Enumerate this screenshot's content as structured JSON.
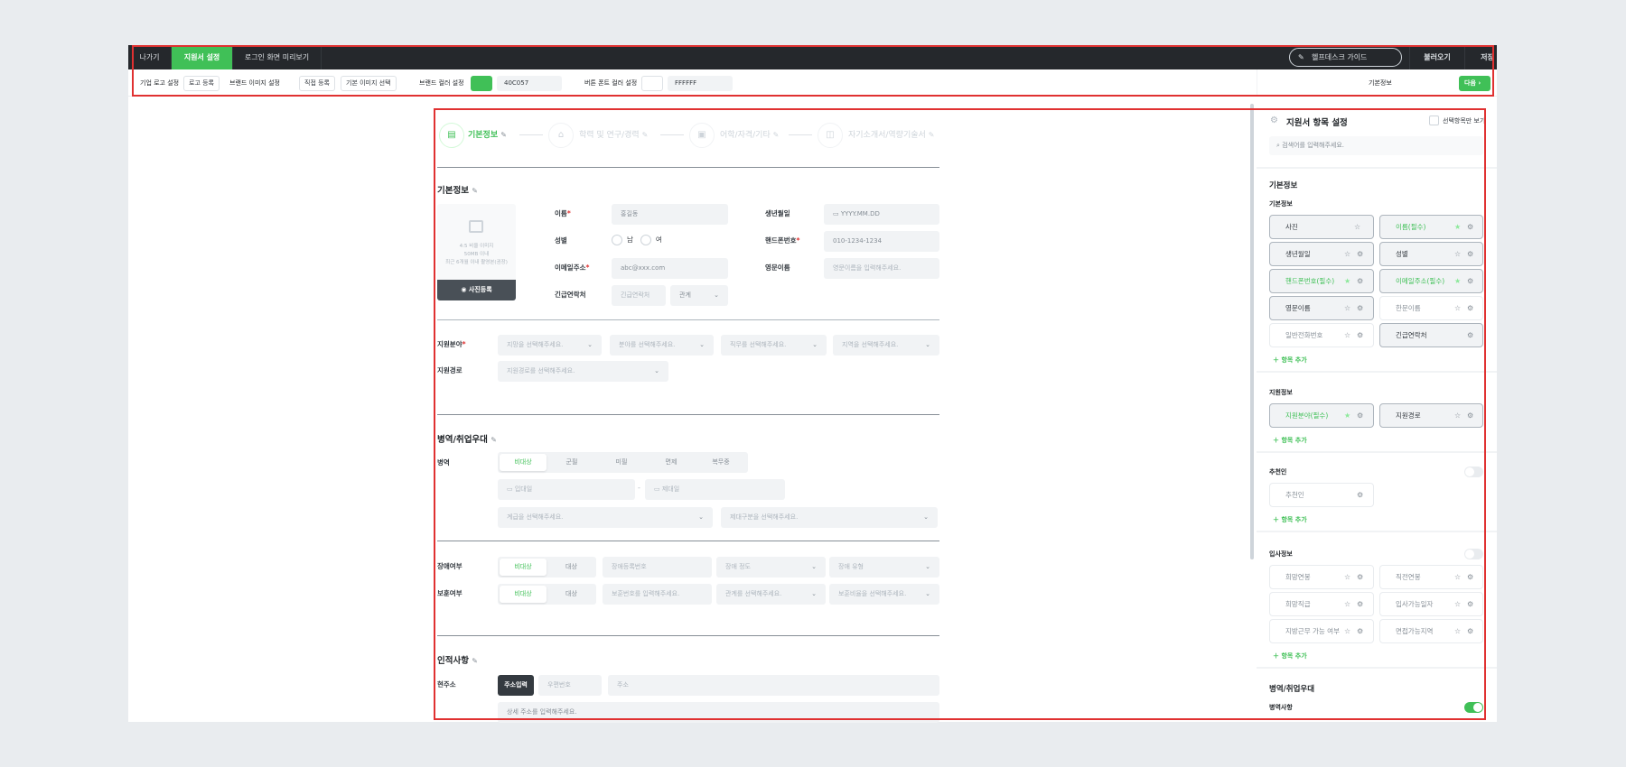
{
  "colors": {
    "brand": "#40C057",
    "topbar": "#25282c"
  },
  "topbar": {
    "tabs": [
      "나가기",
      "지원서 설정",
      "로그인 화면 미리보기"
    ],
    "active_tab": 1,
    "helpdesk": "헬프데스크 가이드",
    "load": "불러오기",
    "save": "저장"
  },
  "toolbar": {
    "logo_label": "기업 로고 설정",
    "logo_btn": "로고 등록",
    "brand_img_label": "브랜드 이미지 설정",
    "brand_img_btn1": "직접 등록",
    "brand_img_btn2": "기본 이미지 선택",
    "brand_color_label": "브랜드 컬러 설정",
    "brand_color": "40C057",
    "font_color_label": "버튼 폰트 컬러 설정",
    "font_color": "FFFFFF",
    "current_step": "기본정보",
    "next": "다음"
  },
  "steps": [
    "기본정보",
    "학력 및 연구/경력",
    "어학/자격/기타",
    "자기소개서/역량기술서"
  ],
  "basic": {
    "title": "기본정보",
    "photo_hint": [
      "4:5 비율 이미지",
      "50MB 이내",
      "최근 6개월 이내 촬영본(권장)"
    ],
    "photo_btn": "사진등록",
    "name_label": "이름",
    "name_ph": "홍길동",
    "birth_label": "생년월일",
    "birth_ph": "YYYY.MM.DD",
    "gender_label": "성별",
    "male": "남",
    "female": "여",
    "phone_label": "핸드폰번호",
    "phone_ph": "010-1234-1234",
    "email_label": "이메일주소",
    "email_ph": "abc@xxx.com",
    "eng_label": "영문이름",
    "eng_ph": "영문이름을 입력해주세요.",
    "emergency_label": "긴급연락처",
    "emergency_ph": "긴급연락처",
    "relation_ph": "관계",
    "apply_label": "지원분야",
    "apply_selects": [
      "지망을 선택해주세요.",
      "분야를 선택해주세요.",
      "직무를 선택해주세요.",
      "지역을 선택해주세요."
    ],
    "route_label": "지원경로",
    "route_ph": "지원경로를 선택해주세요."
  },
  "military": {
    "title": "병역/취업우대",
    "label": "병역",
    "options": [
      "비대상",
      "군필",
      "미필",
      "면제",
      "복무중"
    ],
    "selected": "비대상",
    "enlist_ph": "입대일",
    "discharge_ph": "제대일",
    "rank_ph": "계급을 선택해주세요.",
    "discharge_type_ph": "제대구분을 선택해주세요.",
    "disability_label": "장애여부",
    "disability_opts": [
      "비대상",
      "대상"
    ],
    "disability_no_ph": "장애등록번호",
    "disability_level_ph": "장애 정도",
    "disability_type_ph": "장애 유형",
    "veteran_label": "보훈여부",
    "veteran_opts": [
      "비대상",
      "대상"
    ],
    "veteran_no_ph": "보훈번호를 입력해주세요.",
    "veteran_rel_ph": "관계를 선택해주세요.",
    "veteran_rate_ph": "보훈비율을 선택해주세요."
  },
  "personal": {
    "title": "인적사항",
    "address_label": "현주소",
    "address_btn": "주소입력",
    "zip_ph": "우편번호",
    "addr_ph": "주소",
    "detail_ph": "상세 주소를 입력해주세요."
  },
  "panel": {
    "title": "지원서 항목 설정",
    "selected_only": "선택항목만 보기",
    "search_ph": "검색어를 입력해주세요.",
    "add": "항목 추가",
    "section_basic": "기본정보",
    "groups": [
      {
        "title": "기본정보",
        "toggle": null,
        "items": [
          {
            "label": "사진",
            "state": "active",
            "star": true,
            "gear": false
          },
          {
            "label": "이름(필수)",
            "state": "required",
            "star": true,
            "gear": true
          },
          {
            "label": "생년월일",
            "state": "active",
            "star": true,
            "gear": true
          },
          {
            "label": "성별",
            "state": "active",
            "star": true,
            "gear": true
          },
          {
            "label": "핸드폰번호(필수)",
            "state": "required",
            "star": true,
            "gear": true
          },
          {
            "label": "이메일주소(필수)",
            "state": "required",
            "star": true,
            "gear": true
          },
          {
            "label": "영문이름",
            "state": "active",
            "star": true,
            "gear": true
          },
          {
            "label": "한문이름",
            "state": "off",
            "star": true,
            "gear": true
          },
          {
            "label": "일반전화번호",
            "state": "off",
            "star": true,
            "gear": true
          },
          {
            "label": "긴급연락처",
            "state": "active",
            "star": false,
            "gear": true
          }
        ]
      },
      {
        "title": "지원정보",
        "toggle": null,
        "items": [
          {
            "label": "지원분야(필수)",
            "state": "required",
            "star": true,
            "gear": true
          },
          {
            "label": "지원경로",
            "state": "active",
            "star": true,
            "gear": true
          }
        ]
      },
      {
        "title": "추천인",
        "toggle": false,
        "items": [
          {
            "label": "추천인",
            "state": "off",
            "star": false,
            "gear": true
          }
        ]
      },
      {
        "title": "입사정보",
        "toggle": false,
        "items": [
          {
            "label": "희망연봉",
            "state": "off",
            "star": true,
            "gear": true
          },
          {
            "label": "직전연봉",
            "state": "off",
            "star": true,
            "gear": true
          },
          {
            "label": "희망직급",
            "state": "off",
            "star": true,
            "gear": true
          },
          {
            "label": "입사가능일자",
            "state": "off",
            "star": true,
            "gear": true
          },
          {
            "label": "지방근무 가능 여부",
            "state": "off",
            "star": true,
            "gear": true
          },
          {
            "label": "면접가능지역",
            "state": "off",
            "star": true,
            "gear": true
          }
        ]
      }
    ],
    "section_military": "병역/취업우대",
    "military_item": "병역사항",
    "military_toggle": true
  }
}
